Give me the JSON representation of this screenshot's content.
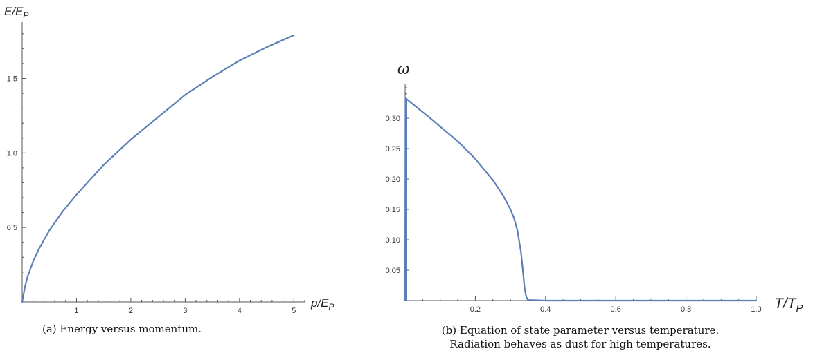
{
  "chart_data": [
    {
      "type": "line",
      "caption": "(a)  Energy versus momentum.",
      "xlabel_main": "p/E",
      "xlabel_sub": "P",
      "ylabel_main": "E/E",
      "ylabel_sub": "P",
      "xlim": [
        0,
        5.2
      ],
      "ylim": [
        0,
        1.85
      ],
      "xticks": [
        1,
        2,
        3,
        4,
        5
      ],
      "xtick_labels": [
        "1",
        "2",
        "3",
        "4",
        "5"
      ],
      "yticks": [
        0.5,
        1.0,
        1.5
      ],
      "ytick_labels": [
        "0.5",
        "1.0",
        "1.5"
      ],
      "grid": false,
      "color": "#5b7fb5",
      "series": [
        {
          "x": [
            0,
            0.05,
            0.1,
            0.2,
            0.3,
            0.5,
            0.75,
            1.0,
            1.5,
            2.0,
            2.5,
            3.0,
            3.5,
            4.0,
            4.5,
            5.0
          ],
          "y": [
            0,
            0.1,
            0.17,
            0.27,
            0.35,
            0.48,
            0.61,
            0.72,
            0.92,
            1.09,
            1.24,
            1.39,
            1.51,
            1.62,
            1.71,
            1.79
          ]
        }
      ]
    },
    {
      "type": "line",
      "caption_line1": "(b)  Equation of state parameter versus temperature.",
      "caption_line2": "Radiation behaves as dust for high temperatures.",
      "xlabel_main": "T/T",
      "xlabel_sub": "P",
      "ylabel": "ω",
      "xlim": [
        0,
        1.0
      ],
      "ylim": [
        0,
        0.35
      ],
      "xticks": [
        0.2,
        0.4,
        0.6,
        0.8,
        1.0
      ],
      "xtick_labels": [
        "0.2",
        "0.4",
        "0.6",
        "0.8",
        "1.0"
      ],
      "yticks": [
        0.05,
        0.1,
        0.15,
        0.2,
        0.25,
        0.3
      ],
      "ytick_labels": [
        "0.05",
        "0.10",
        "0.15",
        "0.20",
        "0.25",
        "0.30"
      ],
      "grid": false,
      "color": "#5b7fb5",
      "series": [
        {
          "x": [
            0,
            0.001,
            0.02,
            0.05,
            0.08,
            0.1,
            0.15,
            0.2,
            0.25,
            0.28,
            0.3,
            0.31,
            0.32,
            0.33,
            0.335,
            0.34,
            0.345,
            0.35,
            0.4,
            0.6,
            0.8,
            1.0
          ],
          "y": [
            0,
            0.333,
            0.324,
            0.31,
            0.296,
            0.286,
            0.262,
            0.233,
            0.198,
            0.172,
            0.15,
            0.136,
            0.115,
            0.08,
            0.052,
            0.022,
            0.006,
            0.001,
            0,
            0,
            0,
            0
          ]
        }
      ]
    }
  ]
}
